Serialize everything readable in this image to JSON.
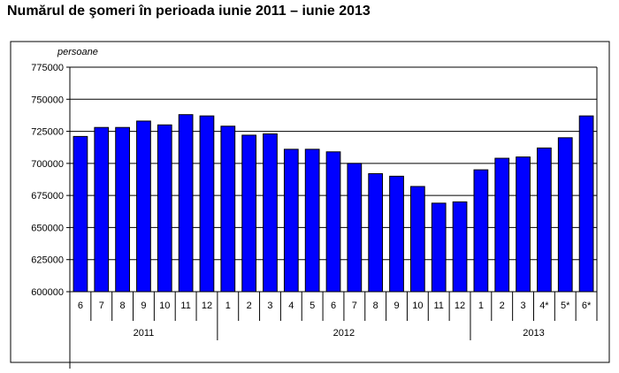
{
  "title": "Numărul de şomeri în perioada iunie 2011 – iunie 2013",
  "chart_data": {
    "type": "bar",
    "title": "Numărul de şomeri în perioada iunie 2011 – iunie 2013",
    "ylabel": "persoane",
    "ylim": [
      600000,
      775000
    ],
    "yticks": [
      "600000",
      "625000",
      "650000",
      "675000",
      "700000",
      "725000",
      "750000",
      "775000"
    ],
    "categories": [
      "6",
      "7",
      "8",
      "9",
      "10",
      "11",
      "12",
      "1",
      "2",
      "3",
      "4",
      "5",
      "6",
      "7",
      "8",
      "9",
      "10",
      "11",
      "12",
      "1",
      "2",
      "3",
      "4*",
      "5*",
      "6*"
    ],
    "values": [
      721000,
      728000,
      728000,
      733000,
      730000,
      738000,
      737000,
      729000,
      722000,
      723000,
      711000,
      711000,
      709000,
      700000,
      692000,
      690000,
      682000,
      669000,
      670000,
      695000,
      704000,
      705000,
      712000,
      720000,
      737000
    ],
    "years": [
      {
        "label": "2011",
        "start": 0,
        "count": 7
      },
      {
        "label": "2012",
        "start": 7,
        "count": 12
      },
      {
        "label": "2013",
        "start": 19,
        "count": 6
      }
    ],
    "bar_color": "#0000ff",
    "grid": true,
    "legend": "none"
  }
}
